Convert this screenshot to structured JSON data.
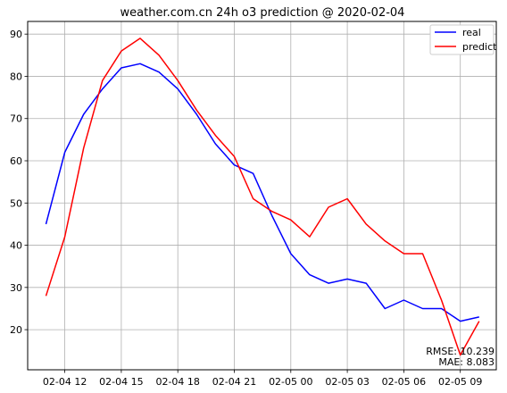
{
  "chart_data": {
    "type": "line",
    "title": "weather.com.cn 24h o3 prediction @ 2020-02-04",
    "xlabel": "",
    "ylabel": "",
    "x_tick_labels": [
      "02-04 12",
      "02-04 15",
      "02-04 18",
      "02-04 21",
      "02-05 00",
      "02-05 03",
      "02-05 06",
      "02-05 09"
    ],
    "y_ticks": [
      20,
      30,
      40,
      50,
      60,
      70,
      80,
      90
    ],
    "ylim": [
      10.5,
      93
    ],
    "x": [
      "02-04 11",
      "02-04 12",
      "02-04 13",
      "02-04 14",
      "02-04 15",
      "02-04 16",
      "02-04 17",
      "02-04 18",
      "02-04 19",
      "02-04 20",
      "02-04 21",
      "02-04 22",
      "02-04 23",
      "02-05 00",
      "02-05 01",
      "02-05 02",
      "02-05 03",
      "02-05 04",
      "02-05 05",
      "02-05 06",
      "02-05 07",
      "02-05 08",
      "02-05 09",
      "02-05 10"
    ],
    "series": [
      {
        "name": "real",
        "color": "#0000ff",
        "values": [
          45,
          62,
          71,
          77,
          82,
          83,
          81,
          77,
          71,
          64,
          59,
          57,
          47,
          38,
          33,
          31,
          32,
          31,
          25,
          27,
          25,
          25,
          22,
          23
        ]
      },
      {
        "name": "predict",
        "color": "#ff0000",
        "values": [
          28,
          42,
          63,
          79,
          86,
          89,
          85,
          79,
          72,
          66,
          61,
          51,
          48,
          46,
          42,
          49,
          51,
          45,
          41,
          38,
          38,
          27,
          14,
          22
        ]
      }
    ],
    "grid": true,
    "legend_position": "top-right",
    "annotation": {
      "lines": [
        "RMSE: 10.239",
        "MAE: 8.083"
      ]
    }
  }
}
